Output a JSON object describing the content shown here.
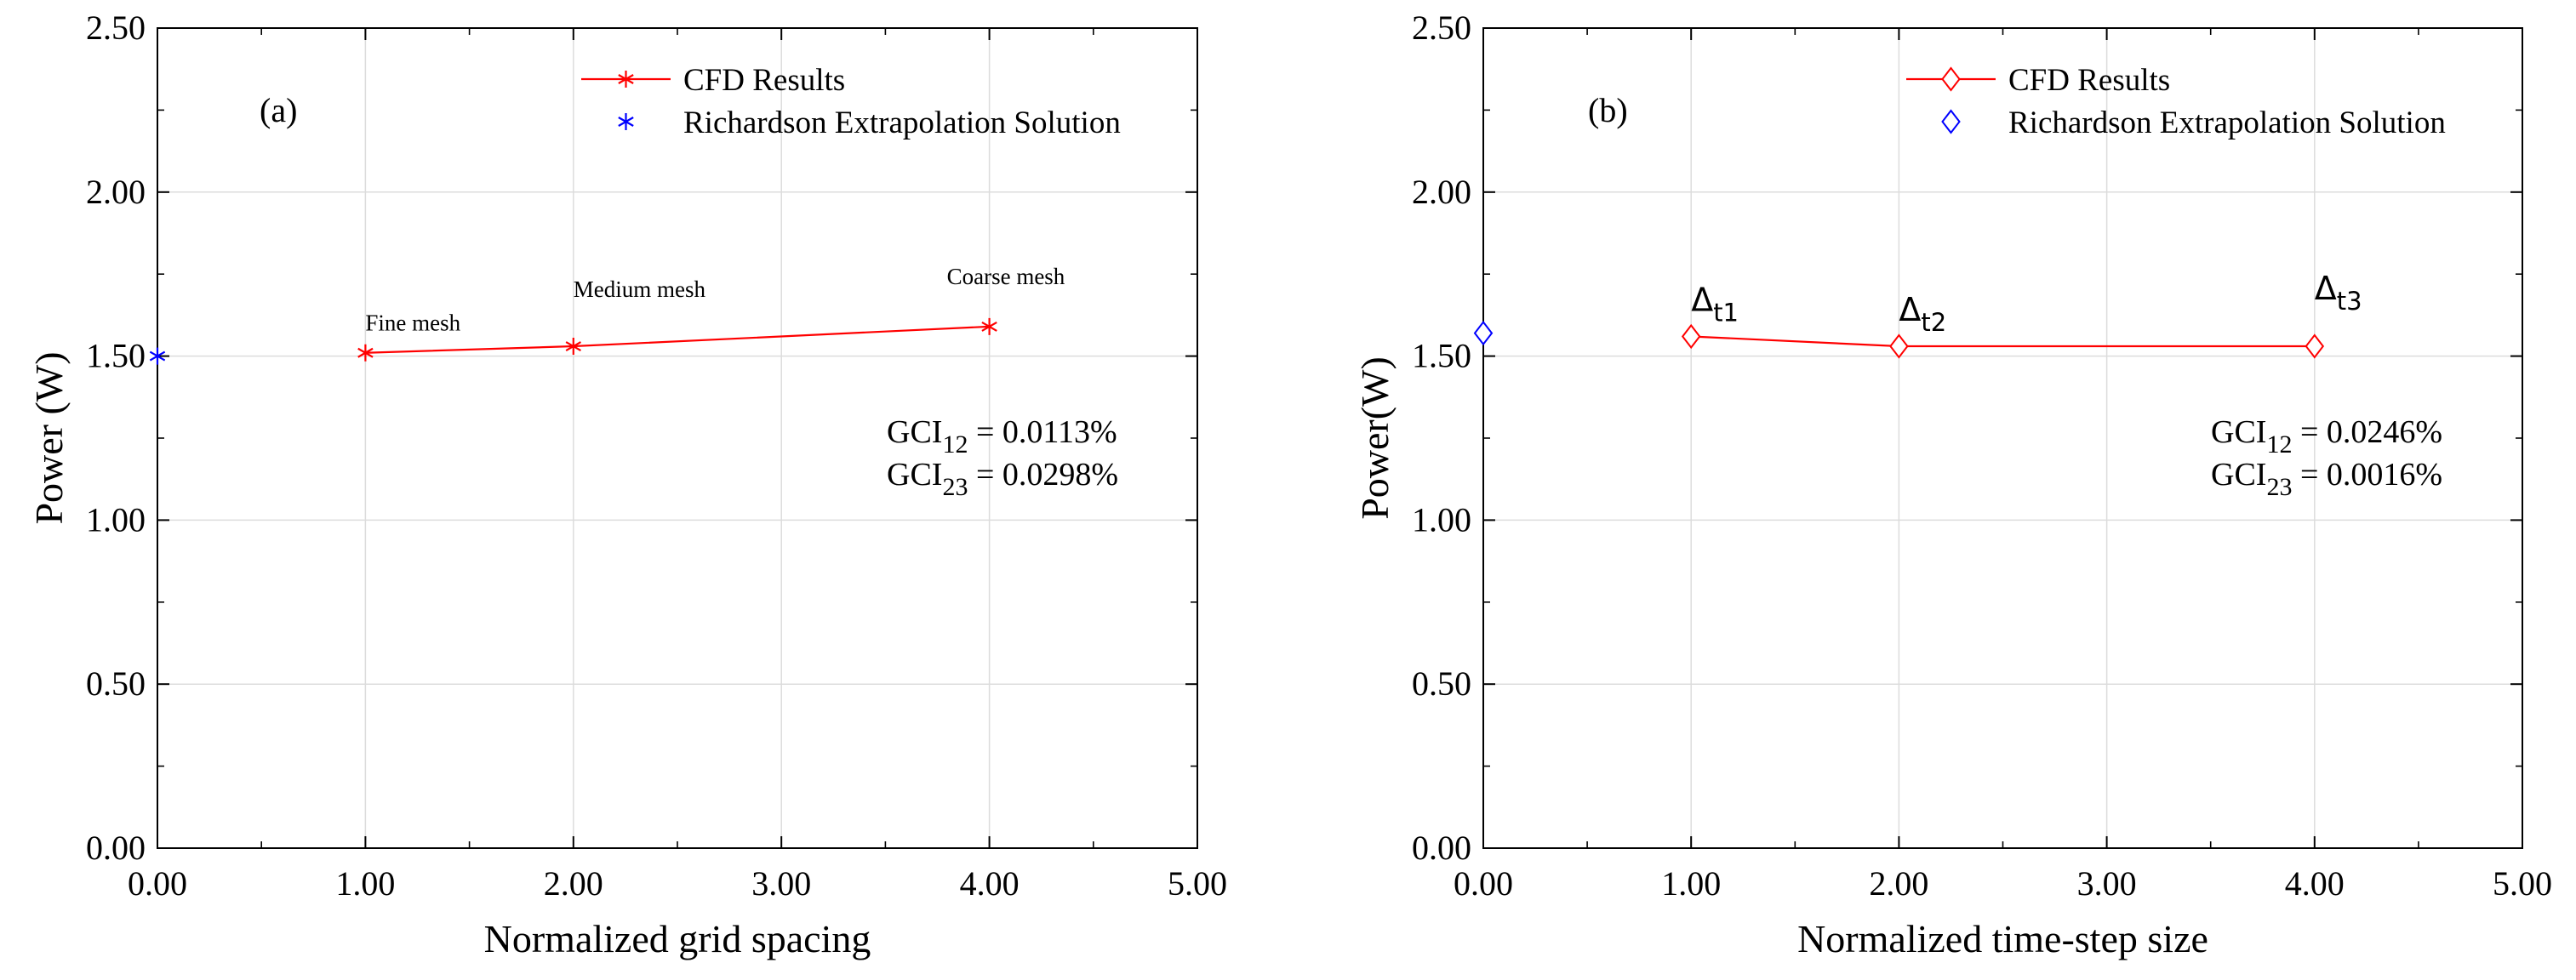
{
  "chart_data": [
    {
      "type": "line",
      "panel_label": "(a)",
      "xlabel": "Normalized grid spacing",
      "ylabel": "Power (W)",
      "xlim": [
        0,
        5
      ],
      "ylim": [
        0,
        2.5
      ],
      "x_ticks": [
        0,
        1,
        2,
        3,
        4,
        5
      ],
      "x_tick_labels": [
        "0.00",
        "1.00",
        "2.00",
        "3.00",
        "4.00",
        "5.00"
      ],
      "y_ticks": [
        0,
        0.5,
        1,
        1.5,
        2,
        2.5
      ],
      "y_tick_labels": [
        "0.00",
        "0.50",
        "1.00",
        "1.50",
        "2.00",
        "2.50"
      ],
      "grid": true,
      "legend_position": "top-center",
      "marker": "asterisk",
      "series": [
        {
          "name": "CFD Results",
          "color": "#ff0000",
          "x": [
            1,
            2,
            4
          ],
          "y": [
            1.51,
            1.53,
            1.59
          ]
        },
        {
          "name": "Richardson Extrapolation Solution",
          "color": "#0000ff",
          "x": [
            0
          ],
          "y": [
            1.5
          ]
        }
      ],
      "annotations": [
        {
          "text": "Fine mesh",
          "x": 1.0,
          "y": 1.51
        },
        {
          "text": "Medium mesh",
          "x": 2.0,
          "y": 1.53
        },
        {
          "text": "Coarse mesh",
          "x": 4.0,
          "y": 1.59
        }
      ],
      "gci": [
        {
          "base": "GCI",
          "sub": "12",
          "value": " = 0.0113%"
        },
        {
          "base": "GCI",
          "sub": "23",
          "value": " = 0.0298%"
        }
      ]
    },
    {
      "type": "line",
      "panel_label": "(b)",
      "xlabel": "Normalized time-step size",
      "ylabel": "Power(W)",
      "xlim": [
        0,
        5
      ],
      "ylim": [
        0,
        2.5
      ],
      "x_ticks": [
        0,
        1,
        2,
        3,
        4,
        5
      ],
      "x_tick_labels": [
        "0.00",
        "1.00",
        "2.00",
        "3.00",
        "4.00",
        "5.00"
      ],
      "y_ticks": [
        0,
        0.5,
        1,
        1.5,
        2,
        2.5
      ],
      "y_tick_labels": [
        "0.00",
        "0.50",
        "1.00",
        "1.50",
        "2.00",
        "2.50"
      ],
      "grid": true,
      "legend_position": "top-center",
      "marker": "diamond",
      "series": [
        {
          "name": "CFD Results",
          "color": "#ff0000",
          "x": [
            1,
            2,
            4
          ],
          "y": [
            1.56,
            1.53,
            1.53
          ]
        },
        {
          "name": "Richardson Extrapolation Solution",
          "color": "#0000ff",
          "x": [
            0
          ],
          "y": [
            1.57
          ]
        }
      ],
      "annotations": [
        {
          "base": "Δ",
          "sub": "t1",
          "x": 1.0,
          "y": 1.56
        },
        {
          "base": "Δ",
          "sub": "t2",
          "x": 2.0,
          "y": 1.53
        },
        {
          "base": "Δ",
          "sub": "t3",
          "x": 4.0,
          "y": 1.53
        }
      ],
      "gci": [
        {
          "base": "GCI",
          "sub": "12",
          "value": " = 0.0246%"
        },
        {
          "base": "GCI",
          "sub": "23",
          "value": " = 0.0016%"
        }
      ]
    }
  ]
}
